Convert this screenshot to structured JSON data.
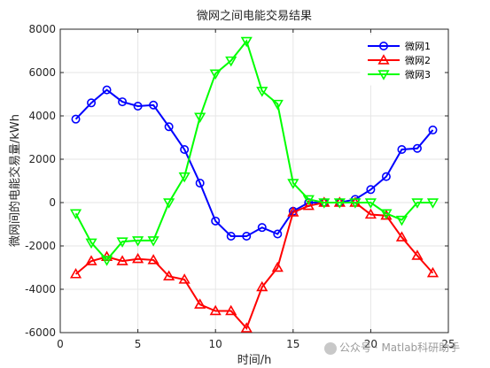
{
  "chart_data": {
    "type": "line",
    "title": "微网之间电能交易结果",
    "xlabel": "时间/h",
    "ylabel": "微网间的电能交易量/kWh",
    "xlim": [
      0,
      25
    ],
    "ylim": [
      -6000,
      8000
    ],
    "x_ticks": [
      0,
      5,
      10,
      15,
      20,
      25
    ],
    "y_ticks": [
      -6000,
      -4000,
      -2000,
      0,
      2000,
      4000,
      6000,
      8000
    ],
    "grid": true,
    "legend_position": "top-right",
    "x": [
      1,
      2,
      3,
      4,
      5,
      6,
      7,
      8,
      9,
      10,
      11,
      12,
      13,
      14,
      15,
      16,
      17,
      18,
      19,
      20,
      21,
      22,
      23,
      24
    ],
    "series": [
      {
        "name": "微网1",
        "color": "#0000ff",
        "marker": "circle",
        "values": [
          3850,
          4600,
          5200,
          4650,
          4450,
          4500,
          3500,
          2450,
          900,
          -850,
          -1550,
          -1550,
          -1150,
          -1450,
          -400,
          0,
          0,
          0,
          150,
          600,
          1200,
          2450,
          2500,
          3350
        ]
      },
      {
        "name": "微网2",
        "color": "#ff0000",
        "marker": "triangle-up",
        "values": [
          -3300,
          -2700,
          -2500,
          -2700,
          -2600,
          -2650,
          -3400,
          -3550,
          -4700,
          -5000,
          -5000,
          -5800,
          -3900,
          -3000,
          -450,
          -150,
          0,
          0,
          0,
          -550,
          -600,
          -1600,
          -2450,
          -3250
        ]
      },
      {
        "name": "微网3",
        "color": "#00ff00",
        "marker": "triangle-down",
        "values": [
          -500,
          -1850,
          -2650,
          -1800,
          -1750,
          -1750,
          0,
          1200,
          3950,
          5950,
          6550,
          7450,
          5150,
          4550,
          900,
          150,
          0,
          0,
          0,
          0,
          -500,
          -800,
          0,
          0
        ]
      }
    ]
  },
  "watermark": {
    "text": "公众号 · Matlab科研助手",
    "icon": "wechat-icon"
  }
}
